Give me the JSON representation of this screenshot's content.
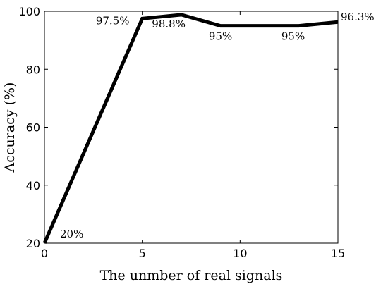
{
  "chart_data": {
    "type": "line",
    "title": "",
    "xlabel": "The unmber of real signals",
    "ylabel": "Accuracy (%)",
    "xlim": [
      0,
      15
    ],
    "ylim": [
      20,
      100
    ],
    "xticks": [
      0,
      5,
      10,
      15
    ],
    "yticks": [
      20,
      40,
      60,
      80,
      100
    ],
    "grid": false,
    "legend": "none",
    "series": [
      {
        "x": [
          0,
          5,
          7,
          9,
          13,
          15
        ],
        "y": [
          20,
          97.5,
          98.8,
          95,
          95,
          96.3
        ],
        "color": "#000000"
      }
    ],
    "data_labels": [
      {
        "x": 0,
        "y": 20,
        "text": "20%"
      },
      {
        "x": 5,
        "y": 97.5,
        "text": "97.5%"
      },
      {
        "x": 7,
        "y": 98.8,
        "text": "98.8%"
      },
      {
        "x": 9,
        "y": 95,
        "text": "95%"
      },
      {
        "x": 13,
        "y": 95,
        "text": "95%"
      },
      {
        "x": 15,
        "y": 96.3,
        "text": "96.3%"
      }
    ]
  }
}
